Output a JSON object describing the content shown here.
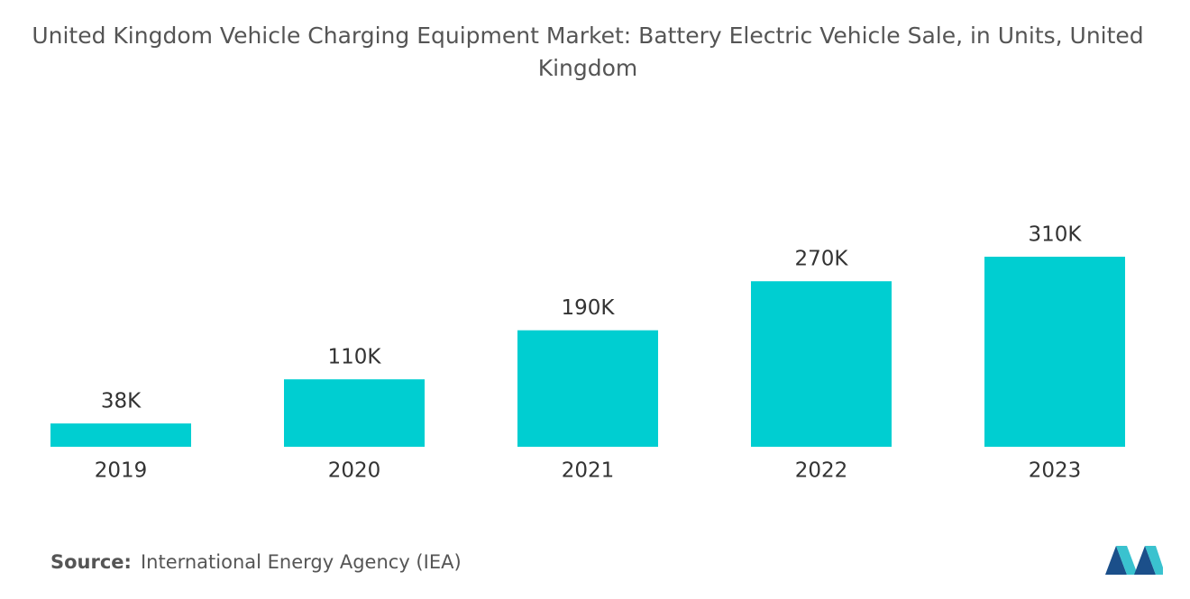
{
  "chart_data": {
    "type": "bar",
    "title": "United Kingdom Vehicle Charging Equipment Market: Battery Electric Vehicle Sale, in Units, United Kingdom",
    "categories": [
      "2019",
      "2020",
      "2021",
      "2022",
      "2023"
    ],
    "values": [
      38000,
      110000,
      190000,
      270000,
      310000
    ],
    "value_labels": [
      "38K",
      "110K",
      "190K",
      "270K",
      "310K"
    ],
    "color": "#00ced1",
    "source_label": "Source:",
    "source": "International Energy Agency (IEA)"
  }
}
